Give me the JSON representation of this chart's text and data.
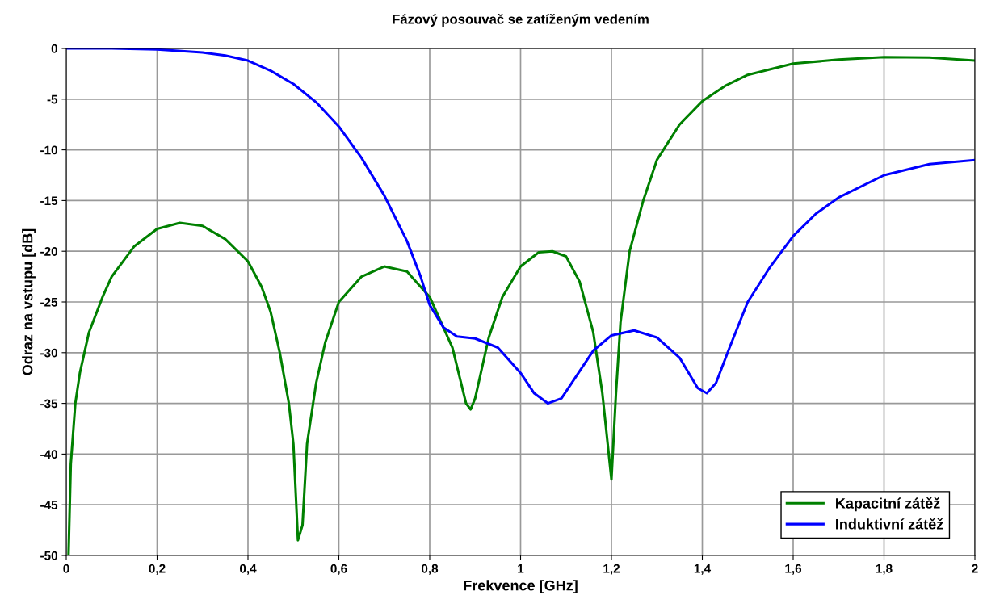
{
  "chart_data": {
    "type": "line",
    "title": "Fázový posouvač se zatíženým vedením",
    "xlabel": "Frekvence [GHz]",
    "ylabel": "Odraz na vstupu [dB]",
    "xlim": [
      0,
      2
    ],
    "ylim": [
      -50,
      0
    ],
    "xticks": [
      0,
      {
        "value": 0.2,
        "label": "0,2"
      },
      {
        "value": 0.4,
        "label": "0,4"
      },
      {
        "value": 0.6,
        "label": "0,6"
      },
      {
        "value": 0.8,
        "label": "0,8"
      },
      1,
      {
        "value": 1.2,
        "label": "1,2"
      },
      {
        "value": 1.4,
        "label": "1,4"
      },
      {
        "value": 1.6,
        "label": "1,6"
      },
      {
        "value": 1.8,
        "label": "1,8"
      },
      2
    ],
    "yticks": [
      -50,
      -45,
      -40,
      -35,
      -30,
      -25,
      -20,
      -15,
      -10,
      -5,
      0
    ],
    "grid": true,
    "legend": "bottom right",
    "marker": "none",
    "line_style": "solid",
    "series": [
      {
        "name": "Kapacitní zátěž",
        "color": "#008000",
        "x": [
          0.005,
          0.01,
          0.02,
          0.03,
          0.05,
          0.08,
          0.1,
          0.15,
          0.2,
          0.25,
          0.3,
          0.35,
          0.4,
          0.43,
          0.45,
          0.47,
          0.49,
          0.5,
          0.51,
          0.52,
          0.53,
          0.55,
          0.57,
          0.6,
          0.65,
          0.7,
          0.75,
          0.8,
          0.85,
          0.88,
          0.89,
          0.9,
          0.93,
          0.96,
          1.0,
          1.04,
          1.07,
          1.1,
          1.13,
          1.16,
          1.18,
          1.2,
          1.21,
          1.22,
          1.24,
          1.27,
          1.3,
          1.35,
          1.4,
          1.45,
          1.5,
          1.6,
          1.7,
          1.8,
          1.9,
          2.0
        ],
        "values": [
          -50,
          -41,
          -35,
          -32,
          -28,
          -24.5,
          -22.5,
          -19.5,
          -17.8,
          -17.2,
          -17.5,
          -18.8,
          -21,
          -23.5,
          -26,
          -30,
          -35,
          -39,
          -48.5,
          -47,
          -39,
          -33,
          -29,
          -25,
          -22.5,
          -21.5,
          -22,
          -24.5,
          -29.5,
          -35,
          -35.6,
          -34.5,
          -28.5,
          -24.5,
          -21.5,
          -20.1,
          -20,
          -20.5,
          -23,
          -28,
          -34,
          -42.5,
          -34,
          -27,
          -20,
          -15,
          -11,
          -7.5,
          -5.2,
          -3.7,
          -2.6,
          -1.5,
          -1.1,
          -0.85,
          -0.9,
          -1.2
        ]
      },
      {
        "name": "Induktivní zátěž",
        "color": "#0000ff",
        "x": [
          0,
          0.1,
          0.2,
          0.3,
          0.35,
          0.4,
          0.45,
          0.5,
          0.55,
          0.6,
          0.65,
          0.7,
          0.75,
          0.78,
          0.8,
          0.83,
          0.86,
          0.9,
          0.95,
          1.0,
          1.03,
          1.06,
          1.09,
          1.12,
          1.16,
          1.2,
          1.25,
          1.3,
          1.35,
          1.39,
          1.41,
          1.43,
          1.46,
          1.5,
          1.55,
          1.6,
          1.65,
          1.7,
          1.8,
          1.9,
          2.0
        ],
        "values": [
          0,
          0,
          -0.1,
          -0.4,
          -0.7,
          -1.2,
          -2.2,
          -3.5,
          -5.3,
          -7.7,
          -10.8,
          -14.5,
          -19,
          -22.5,
          -25.3,
          -27.5,
          -28.4,
          -28.6,
          -29.5,
          -32,
          -34,
          -35,
          -34.5,
          -32.5,
          -29.8,
          -28.3,
          -27.8,
          -28.5,
          -30.5,
          -33.5,
          -34,
          -33,
          -29.5,
          -25,
          -21.5,
          -18.5,
          -16.3,
          -14.7,
          -12.5,
          -11.4,
          -11
        ]
      }
    ]
  }
}
